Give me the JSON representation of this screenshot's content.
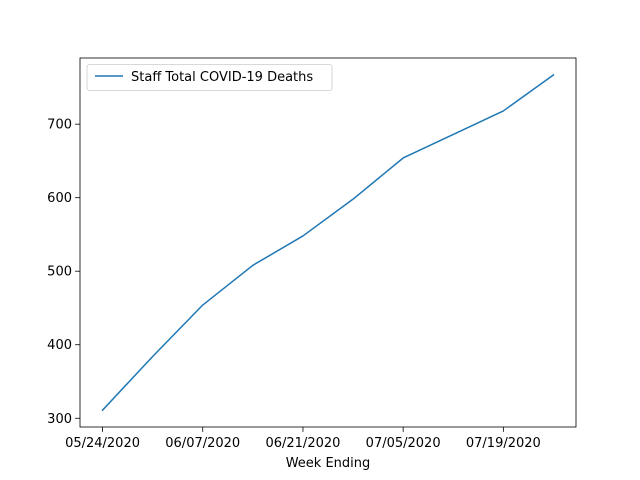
{
  "chart_data": {
    "type": "line",
    "title": "",
    "xlabel": "Week Ending",
    "ylabel": "",
    "x": [
      "05/24/2020",
      "05/31/2020",
      "06/07/2020",
      "06/14/2020",
      "06/21/2020",
      "06/28/2020",
      "07/05/2020",
      "07/12/2020",
      "07/19/2020",
      "07/26/2020"
    ],
    "x_ticks": [
      "05/24/2020",
      "06/07/2020",
      "06/21/2020",
      "07/05/2020",
      "07/19/2020"
    ],
    "series": [
      {
        "name": "Staff Total COVID-19 Deaths",
        "color": "#1f77b4",
        "values": [
          311,
          384,
          454,
          508,
          548,
          598,
          654,
          686,
          718,
          767
        ]
      }
    ],
    "y_ticks": [
      300,
      400,
      500,
      600,
      700
    ],
    "ylim": [
      288.1,
      790
    ],
    "grid": false,
    "legend_position": "top-left"
  }
}
